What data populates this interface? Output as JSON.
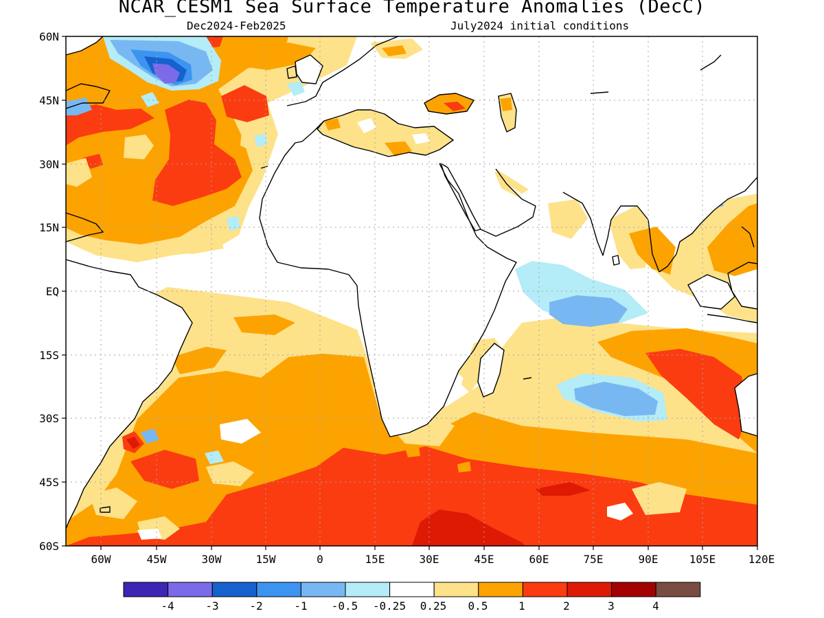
{
  "title": "NCAR_CESM1 Sea Surface Temperature Anomalies (DecC)",
  "period": "Dec2024-Feb2025",
  "initial_conditions": "July2024 initial conditions",
  "lat_ticks": [
    "60N",
    "45N",
    "30N",
    "15N",
    "EQ",
    "15S",
    "30S",
    "45S",
    "60S"
  ],
  "lon_ticks": [
    "60W",
    "45W",
    "30W",
    "15W",
    "0",
    "15E",
    "30E",
    "45E",
    "60E",
    "75E",
    "90E",
    "105E",
    "120E"
  ],
  "colorbar": {
    "labels": [
      "-4",
      "-3",
      "-2",
      "-1",
      "-0.5",
      "-0.25",
      "0.25",
      "0.5",
      "1",
      "2",
      "3",
      "4"
    ],
    "colors": [
      "#3d26b4",
      "#7b6be8",
      "#1562cf",
      "#3d94f0",
      "#78b8f2",
      "#b4ecf7",
      "#ffffff",
      "#fde28a",
      "#fda300",
      "#fb3c10",
      "#de1a04",
      "#a30202",
      "#7a4c42"
    ]
  },
  "colors": {
    "land": "#ffffff",
    "coast": "#000000",
    "grid": "#a6a6a6"
  }
}
